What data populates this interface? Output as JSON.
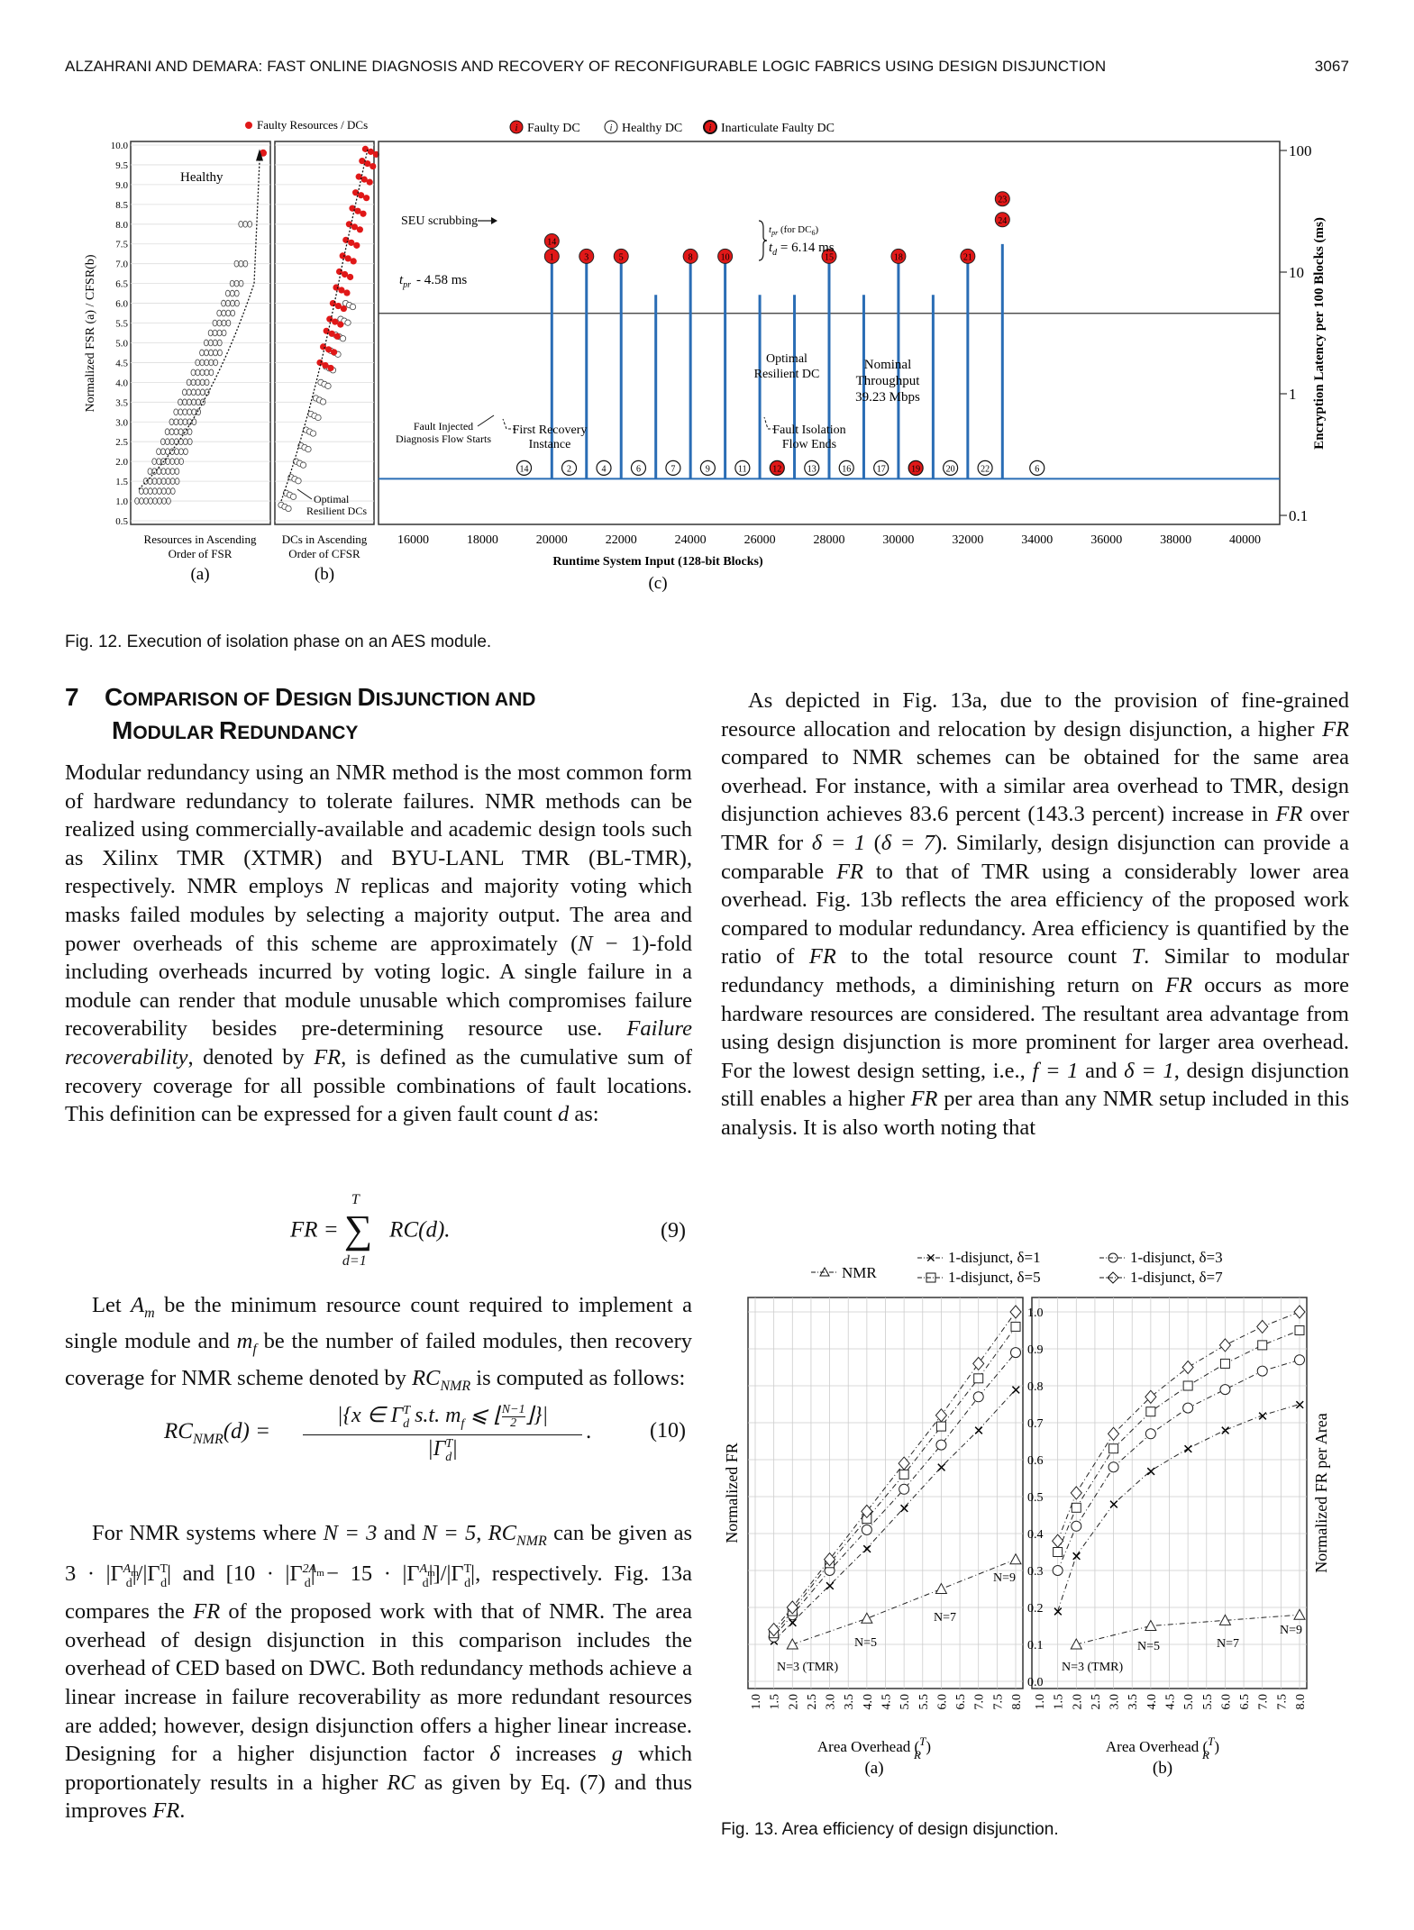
{
  "header": {
    "running_title": "ALZAHRANI AND DEMARA: FAST ONLINE DIAGNOSIS AND RECOVERY OF RECONFIGURABLE LOGIC FABRICS USING DESIGN DISJUNCTION",
    "page_number": "3067"
  },
  "fig12": {
    "caption": "Fig. 12. Execution of isolation phase on an AES module.",
    "panel_a": {
      "legend": "Faulty Resources / DCs",
      "ylabel": "Normalized FSR (a) / CFSR(b)",
      "yticks": [
        "10.0",
        "9.5",
        "9.0",
        "8.5",
        "8.0",
        "7.5",
        "7.0",
        "6.5",
        "6.0",
        "5.5",
        "5.0",
        "4.5",
        "4.0",
        "3.5",
        "3.0",
        "2.5",
        "2.0",
        "1.5",
        "1.0",
        "0.5"
      ],
      "label_healthy": "Healthy",
      "xlabel_line1": "Resources in Ascending",
      "xlabel_line2": "Order of FSR",
      "tag": "(a)"
    },
    "panel_b": {
      "xlabel_line1": "DCs in Ascending",
      "xlabel_line2": "Order of CFSR",
      "optimal_line1": "Optimal",
      "optimal_line2": "Resilient DCs",
      "tag": "(b)"
    },
    "panel_c": {
      "legend_faulty": "Faulty DC",
      "legend_healthy": "Healthy DC",
      "legend_inarticulate": "Inarticulate Faulty DC",
      "sub_i": "i",
      "seu": "SEU scrubbing",
      "tpr": "t",
      "tpr_sub": "pr",
      "tpr_value": "- 4.58 ms",
      "tpr_dc6": "(for DC",
      "tpr_dc6_sub": "6",
      "tpr_dc6_close": ")",
      "td": "t",
      "td_sub": "d",
      "td_value": "= 6.14 ms",
      "optimal_line1": "Optimal",
      "optimal_line2": "Resilient DC",
      "nominal_line1": "Nominal",
      "nominal_line2": "Throughput",
      "nominal_line3": "39.23 Mbps",
      "fault_injected_line1": "Fault Injected",
      "fault_injected_line2": "Diagnosis Flow Starts",
      "first_recovery_line1": "First Recovery",
      "first_recovery_line2": "Instance",
      "fault_isolation_line1": "Fault Isolation",
      "fault_isolation_line2": "Flow Ends",
      "xlabel": "Runtime System Input (128-bit Blocks)",
      "ylabel": "Encryption Latency per 100 Blocks (ms)",
      "xticks": [
        "16000",
        "18000",
        "20000",
        "22000",
        "24000",
        "26000",
        "28000",
        "30000",
        "32000",
        "34000",
        "36000",
        "38000",
        "40000"
      ],
      "yticks": [
        "100",
        "10",
        "1",
        "0.1"
      ],
      "tag": "(c)",
      "bottom_circles": [
        "14",
        "2",
        "4",
        "6",
        "7",
        "9",
        "11",
        "12",
        "13",
        "16",
        "17",
        "19",
        "20",
        "22",
        "6"
      ],
      "bottom_circles_red": [
        "12",
        "19"
      ],
      "top_circles_red": [
        "14",
        "1",
        "3",
        "5",
        "8",
        "10",
        "15",
        "18",
        "21",
        "23",
        "24"
      ]
    }
  },
  "section": {
    "number": "7",
    "title_line1_a": "C",
    "title_line1_b": "OMPARISON OF ",
    "title_line1_c": "D",
    "title_line1_d": "ESIGN ",
    "title_line1_e": "D",
    "title_line1_f": "ISJUNCTION AND",
    "title_line2_a": "M",
    "title_line2_b": "ODULAR ",
    "title_line2_c": "R",
    "title_line2_d": "EDUNDANCY"
  },
  "left_column": {
    "p1_a": "Modular redundancy using an NMR method is the most common form of hardware redundancy to tolerate failures. NMR methods can be realized using commercially-available and academic design tools such as Xilinx TMR (XTMR) and BYU-LANL TMR (BL-TMR), respectively. NMR employs ",
    "p1_N": "N",
    "p1_b": " replicas and majority voting which masks failed modules by selecting a majority output. The area and power overheads of this scheme are approximately (",
    "p1_N2": "N",
    "p1_c": " − 1)-fold including overheads incurred by voting logic. A single failure in a module can render that module unusable which compromises failure recoverability besides pre-determining resource use. ",
    "p1_fr_term": "Failure recoverability",
    "p1_d": ", denoted by ",
    "p1_FR": "FR",
    "p1_e": ", is defined as the cumulative sum of recovery coverage for all possible combinations of fault locations. This definition can be expressed for a given fault count ",
    "p1_d_var": "d",
    "p1_f": " as:",
    "eq9_lhs": "FR =",
    "eq9_sum_top": "T",
    "eq9_sum_bottom": "d=1",
    "eq9_rhs": "RC(d).",
    "eq9_num": "(9)",
    "p2_a": "Let ",
    "p2_Am": "A",
    "p2_Am_sub": "m",
    "p2_b": " be the minimum resource count required to implement a single module and ",
    "p2_mf": "m",
    "p2_mf_sub": "f",
    "p2_c": " be the number of failed modules, then recovery coverage for NMR scheme denoted by ",
    "p2_RC": "RC",
    "p2_RC_sub": "NMR",
    "p2_d": " is computed as follows:",
    "eq10_lhs": "RC",
    "eq10_lhs_sub": "NMR",
    "eq10_lhs_arg": "(d) =",
    "eq10_numerator": "|{x ∈ Γ",
    "eq10_numerator_b": " s.t. m",
    "eq10_numerator_c": " ⩽ ⌊",
    "eq10_frac_top": "N−1",
    "eq10_frac_bottom": "2",
    "eq10_numerator_d": "⌋}|",
    "eq10_denominator": "|Γ",
    "eq10_denominator_b": "|",
    "eq10_sup_T": "T",
    "eq10_sub_d": "d",
    "eq10_sub_f": "f",
    "eq10_tail": ".",
    "eq10_num": "(10)",
    "p3_a": "For NMR systems where ",
    "p3_N3": "N = 3",
    "p3_and": " and ",
    "p3_N5": "N = 5",
    "p3_b": ", ",
    "p3_RC": "RC",
    "p3_RC_sub": "NMR",
    "p3_c": " can be given as ",
    "p3_expr1": "3 · |Γ",
    "p3_expr1_b": "|/|Γ",
    "p3_expr1_c": "|",
    "p3_and2": " and ",
    "p3_expr2": "[10 · |Γ",
    "p3_expr2_b": "| − 15 · |Γ",
    "p3_expr2_c": "|]/|Γ",
    "p3_expr2_d": "|",
    "p3_sup_Am": "A",
    "p3_sup_2Am": "2A",
    "p3_sup_m": "m",
    "p3_sup_T": "T",
    "p3_sub_d": "d",
    "p3_d": ", respectively. Fig. 13a compares the ",
    "p3_FR": "FR",
    "p3_e": " of the proposed work with that of NMR. The area overhead of design disjunction in this comparison includes the overhead of CED based on DWC. Both redundancy methods achieve a linear increase in failure recoverability as more redundant resources are added; however, design disjunction offers a higher linear increase. Designing for a higher disjunction factor ",
    "p3_delta": "δ",
    "p3_f": " increases ",
    "p3_g": "g",
    "p3_g2": " which proportionately results in a higher ",
    "p3_RC2": "RC",
    "p3_h": " as given by Eq. (7) and thus improves ",
    "p3_FR2": "FR",
    "p3_i": "."
  },
  "right_column": {
    "p1_a": "As depicted in Fig. 13a, due to the provision of fine-grained resource allocation and relocation by design disjunction, a higher ",
    "p1_FR": "FR",
    "p1_b": " compared to NMR schemes can be obtained for the same area overhead. For instance, with a similar area overhead to TMR, design disjunction achieves ",
    "p1_v1": "83.6",
    "p1_c": " percent (",
    "p1_v2": "143.3",
    "p1_d": " percent) increase in ",
    "p1_FR2": "FR",
    "p1_e": " over TMR for ",
    "p1_delta1": "δ = 1",
    "p1_f": " (",
    "p1_delta7": "δ = 7",
    "p1_g": "). Similarly, design disjunction can provide a comparable ",
    "p1_FR3": "FR",
    "p1_h": " to that of TMR using a considerably lower area overhead. Fig. 13b reflects the area efficiency of the proposed work compared to modular redundancy. Area efficiency is quantified by the ratio of ",
    "p1_FR4": "FR",
    "p1_i": " to the total resource count ",
    "p1_T": "T",
    "p1_j": ". Similar to modular redundancy methods, a diminishing return on ",
    "p1_FR5": "FR",
    "p1_k": " occurs as more hardware resources are considered. The resultant area advantage from using design disjunction is more prominent for larger area overhead. For the lowest design setting, i.e., ",
    "p1_f1": "f = 1",
    "p1_and": " and ",
    "p1_d1": "δ = 1",
    "p1_l": ", design disjunction still enables a higher ",
    "p1_FR6": "FR",
    "p1_m": " per area than any NMR setup included in this analysis. It is also worth noting that"
  },
  "fig13": {
    "caption": "Fig. 13. Area efficiency of design disjunction.",
    "legend": {
      "nmr": "NMR",
      "d1": "1-disjunct, δ=1",
      "d3": "1-disjunct, δ=3",
      "d5": "1-disjunct, δ=5",
      "d7": "1-disjunct, δ=7"
    },
    "panel_a": {
      "ylabel": "Normalized FR",
      "xlabel": "Area Overhead (",
      "xlabel_frac_top": "T",
      "xlabel_frac_bottom": "R",
      "xlabel_close": ")",
      "tag": "(a)",
      "labels": [
        "N=3 (TMR)",
        "N=5",
        "N=7",
        "N=9"
      ]
    },
    "panel_b": {
      "ylabel": "Normalized FR per Area",
      "xlabel": "Area Overhead (",
      "xlabel_frac_top": "T",
      "xlabel_frac_bottom": "R",
      "xlabel_close": ")",
      "tag": "(b)",
      "labels": [
        "N=3 (TMR)",
        "N=5",
        "N=7",
        "N=9"
      ]
    },
    "yticks": [
      "1.0",
      "0.9",
      "0.8",
      "0.7",
      "0.6",
      "0.5",
      "0.4",
      "0.3",
      "0.2",
      "0.1",
      "0.0"
    ],
    "xticks": [
      "1.0",
      "1.5",
      "2.0",
      "2.5",
      "3.0",
      "3.5",
      "4.0",
      "4.5",
      "5.0",
      "5.5",
      "6.0",
      "6.5",
      "7.0",
      "7.5",
      "8.0"
    ]
  },
  "chart_data": [
    {
      "type": "scatter",
      "panel": "Fig. 12(a)",
      "ylabel": "Normalized FSR (a) / CFSR(b)",
      "xlabel": "Resources in Ascending Order of FSR",
      "ylim": [
        0.5,
        10.0
      ],
      "series": [
        {
          "name": "Healthy",
          "y": [
            1.0,
            1.25,
            1.5,
            1.75,
            2.0,
            2.25,
            2.5,
            2.75,
            3.0,
            3.25,
            3.5,
            3.75,
            4.0,
            4.25,
            4.5,
            4.75,
            5.0,
            5.25,
            5.5,
            5.75,
            6.0,
            6.25,
            6.5,
            7.0,
            8.0
          ]
        },
        {
          "name": "Faulty Resources / DCs",
          "y": [
            9.8
          ]
        }
      ]
    },
    {
      "type": "scatter",
      "panel": "Fig. 12(b)",
      "xlabel": "DCs in Ascending Order of CFSR",
      "ylim": [
        0.5,
        10.0
      ],
      "series": [
        {
          "name": "Healthy",
          "y": [
            0.9,
            1.2,
            1.6,
            2.0,
            2.4,
            2.8,
            3.2,
            3.6,
            4.0,
            4.4,
            4.8,
            5.2,
            5.6,
            6.0
          ]
        },
        {
          "name": "Faulty Resources / DCs",
          "y": [
            4.5,
            4.9,
            5.3,
            5.6,
            6.0,
            6.4,
            6.8,
            7.2,
            7.6,
            8.0,
            8.4,
            8.8,
            9.2,
            9.6,
            9.9
          ]
        }
      ]
    },
    {
      "type": "bar",
      "panel": "Fig. 12(c)",
      "xlabel": "Runtime System Input (128-bit Blocks)",
      "ylabel": "Encryption Latency per 100 Blocks (ms)",
      "xlim": [
        15000,
        41000
      ],
      "ylim": [
        0.1,
        100
      ],
      "yscale": "log",
      "baseline": 0.2,
      "x": [
        20000,
        21000,
        22000,
        23000,
        24000,
        25000,
        26000,
        27000,
        28000,
        29000,
        30000,
        31000,
        32000,
        33000
      ],
      "values": [
        12,
        12,
        12,
        6.5,
        12,
        12,
        6.5,
        6.5,
        12,
        6.5,
        12,
        6.5,
        12,
        17
      ],
      "annotations": {
        "tpr_ms": 4.58,
        "td_ms": 6.14,
        "nominal_throughput_mbps": 39.23
      }
    },
    {
      "type": "line",
      "panel": "Fig. 13(a)",
      "ylabel": "Normalized FR",
      "xlabel": "Area Overhead (T/R)",
      "ylim": [
        0.0,
        1.0
      ],
      "xlim": [
        1.0,
        8.0
      ],
      "series": [
        {
          "name": "NMR",
          "x": [
            2.0,
            4.0,
            6.0,
            8.0
          ],
          "y": [
            0.1,
            0.17,
            0.25,
            0.33
          ]
        },
        {
          "name": "1-disjunct, δ=1",
          "x": [
            1.5,
            2.0,
            3.0,
            4.0,
            5.0,
            6.0,
            7.0,
            8.0
          ],
          "y": [
            0.11,
            0.16,
            0.26,
            0.36,
            0.47,
            0.58,
            0.68,
            0.79
          ]
        },
        {
          "name": "1-disjunct, δ=3",
          "x": [
            1.5,
            2.0,
            3.0,
            4.0,
            5.0,
            6.0,
            7.0,
            8.0
          ],
          "y": [
            0.12,
            0.18,
            0.3,
            0.41,
            0.52,
            0.64,
            0.77,
            0.89
          ]
        },
        {
          "name": "1-disjunct, δ=5",
          "x": [
            1.5,
            2.0,
            3.0,
            4.0,
            5.0,
            6.0,
            7.0,
            8.0
          ],
          "y": [
            0.13,
            0.19,
            0.32,
            0.44,
            0.56,
            0.69,
            0.82,
            0.96
          ]
        },
        {
          "name": "1-disjunct, δ=7",
          "x": [
            1.5,
            2.0,
            3.0,
            4.0,
            5.0,
            6.0,
            7.0,
            8.0
          ],
          "y": [
            0.14,
            0.2,
            0.33,
            0.46,
            0.59,
            0.72,
            0.86,
            1.0
          ]
        }
      ]
    },
    {
      "type": "line",
      "panel": "Fig. 13(b)",
      "ylabel": "Normalized FR per Area",
      "xlabel": "Area Overhead (T/R)",
      "ylim": [
        0.0,
        1.0
      ],
      "xlim": [
        1.0,
        8.0
      ],
      "series": [
        {
          "name": "NMR",
          "x": [
            2.0,
            4.0,
            6.0,
            8.0
          ],
          "y": [
            0.1,
            0.15,
            0.165,
            0.18
          ]
        },
        {
          "name": "1-disjunct, δ=1",
          "x": [
            1.5,
            2.0,
            3.0,
            4.0,
            5.0,
            6.0,
            7.0,
            8.0
          ],
          "y": [
            0.19,
            0.34,
            0.48,
            0.57,
            0.63,
            0.68,
            0.72,
            0.75
          ]
        },
        {
          "name": "1-disjunct, δ=3",
          "x": [
            1.5,
            2.0,
            3.0,
            4.0,
            5.0,
            6.0,
            7.0,
            8.0
          ],
          "y": [
            0.3,
            0.42,
            0.58,
            0.67,
            0.74,
            0.79,
            0.84,
            0.87
          ]
        },
        {
          "name": "1-disjunct, δ=5",
          "x": [
            1.5,
            2.0,
            3.0,
            4.0,
            5.0,
            6.0,
            7.0,
            8.0
          ],
          "y": [
            0.35,
            0.47,
            0.63,
            0.73,
            0.8,
            0.86,
            0.91,
            0.95
          ]
        },
        {
          "name": "1-disjunct, δ=7",
          "x": [
            1.5,
            2.0,
            3.0,
            4.0,
            5.0,
            6.0,
            7.0,
            8.0
          ],
          "y": [
            0.38,
            0.51,
            0.67,
            0.77,
            0.85,
            0.91,
            0.96,
            1.0
          ]
        }
      ]
    }
  ]
}
